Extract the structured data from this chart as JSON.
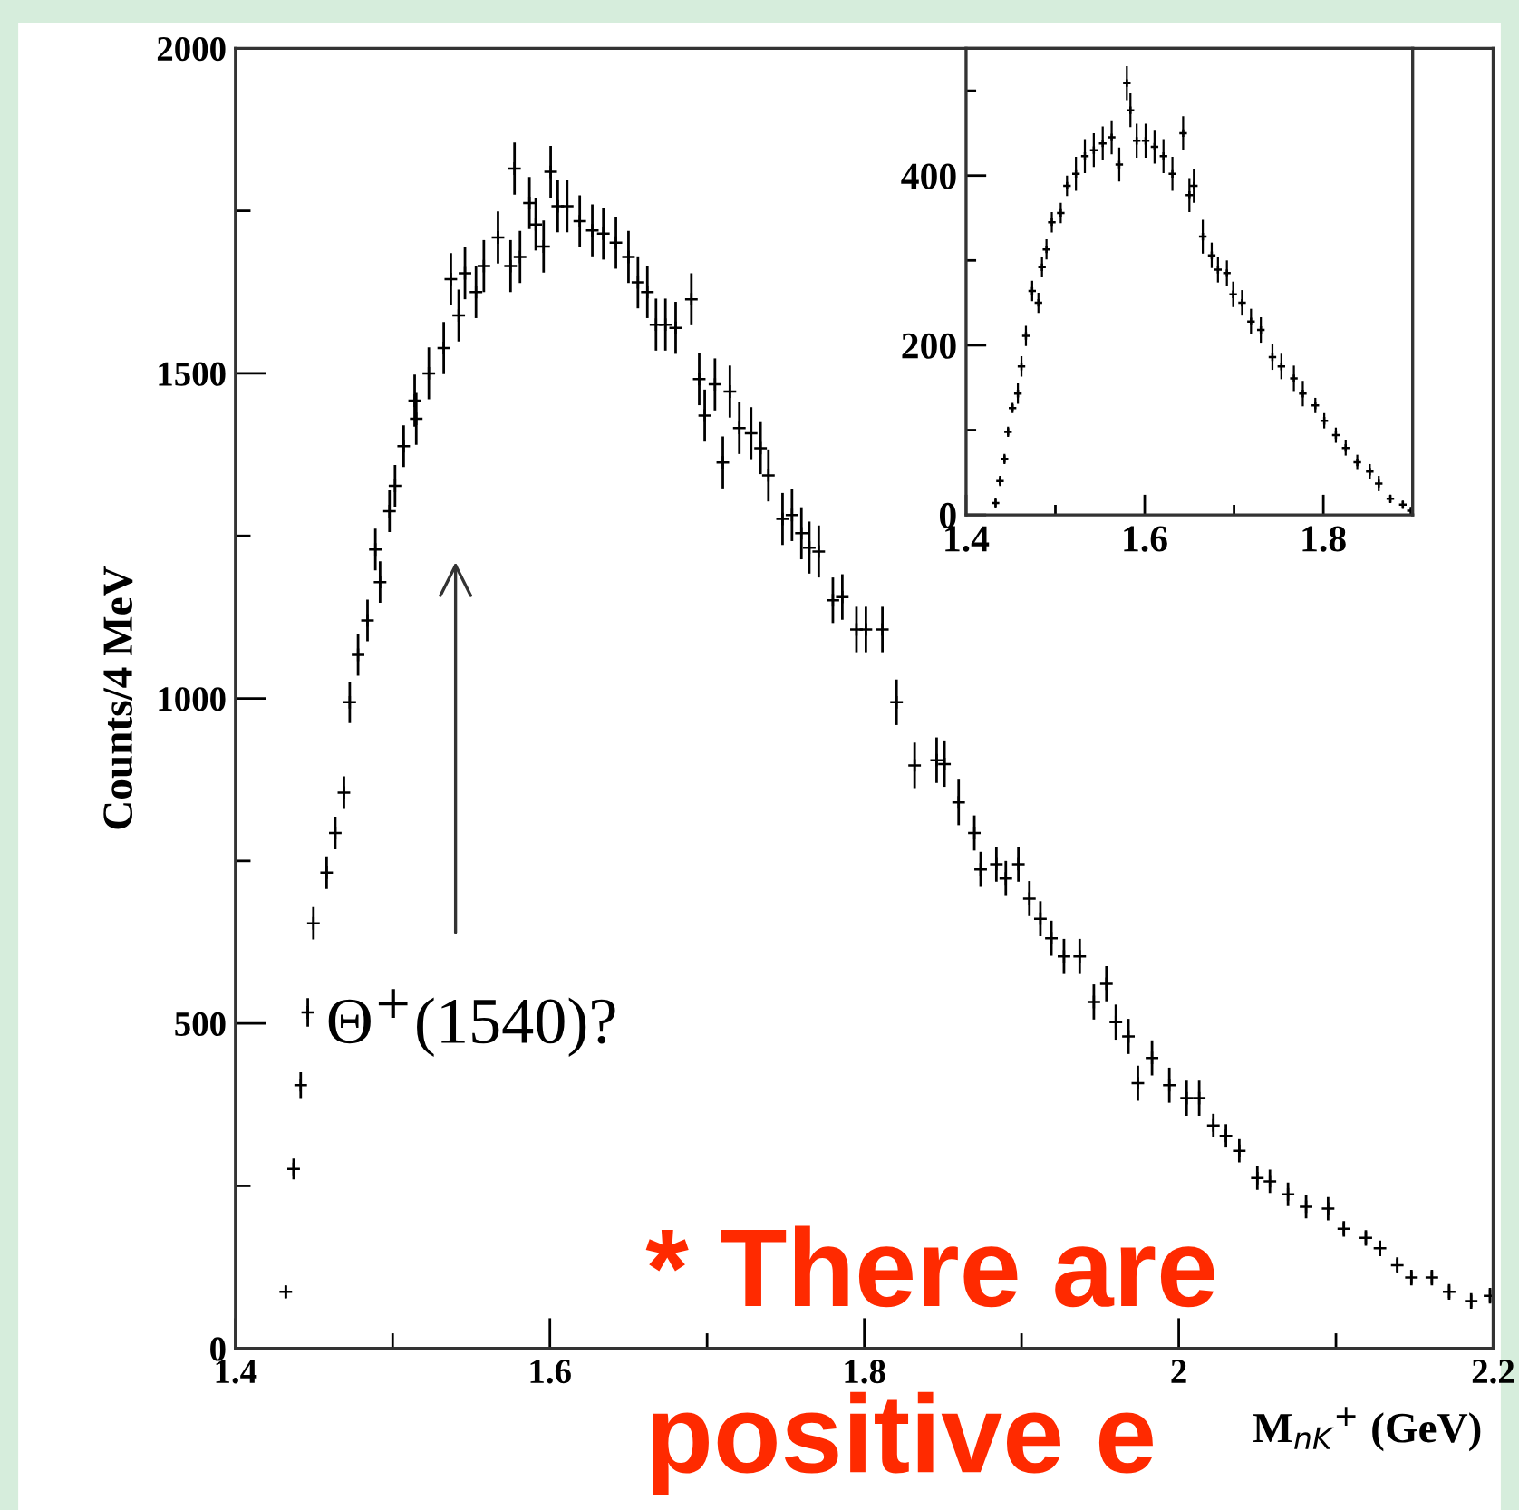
{
  "chart_data": [
    {
      "type": "scatter",
      "xlabel": "M$_{nK}$$^{+}$ (GeV)",
      "ylabel": "Counts/4 MeV",
      "x": [
        1.432,
        1.437,
        1.4415,
        1.446,
        1.4496,
        1.458,
        1.4635,
        1.469,
        1.4727,
        1.478,
        1.484,
        1.489,
        1.492,
        1.498,
        1.5015,
        1.507,
        1.514,
        1.515,
        1.523,
        1.5325,
        1.537,
        1.542,
        1.546,
        1.553,
        1.558,
        1.567,
        1.575,
        1.5775,
        1.581,
        1.587,
        1.591,
        1.596,
        1.6005,
        1.605,
        1.611,
        1.619,
        1.627,
        1.634,
        1.642,
        1.65,
        1.656,
        1.662,
        1.6675,
        1.6735,
        1.68,
        1.69,
        1.695,
        1.6985,
        1.705,
        1.71,
        1.7145,
        1.7205,
        1.728,
        1.734,
        1.739,
        1.748,
        1.754,
        1.76,
        1.765,
        1.771,
        1.78,
        1.786,
        1.795,
        1.801,
        1.8115,
        1.8205,
        1.832,
        1.846,
        1.851,
        1.86,
        1.87,
        1.874,
        1.884,
        1.89,
        1.898,
        1.905,
        1.912,
        1.919,
        1.927,
        1.937,
        1.946,
        1.954,
        1.96,
        1.968,
        1.974,
        1.983,
        1.994,
        2.005,
        2.013,
        2.022,
        2.03,
        2.0385,
        2.05,
        2.058,
        2.0695,
        2.081,
        2.095,
        2.105,
        2.119,
        2.128,
        2.139,
        2.148,
        2.161,
        2.172,
        2.186,
        2.198
      ],
      "series": [
        {
          "color": "#000000",
          "values": [
            87,
            276,
            405,
            517,
            654,
            732,
            793,
            855,
            994,
            1067,
            1120,
            1229,
            1179,
            1288,
            1327,
            1388,
            1458,
            1430,
            1500,
            1539,
            1645,
            1589,
            1654,
            1625,
            1665,
            1709,
            1665,
            1815,
            1679,
            1762,
            1729,
            1695,
            1810,
            1757,
            1757,
            1734,
            1720,
            1715,
            1701,
            1679,
            1640,
            1625,
            1575,
            1575,
            1570,
            1614,
            1491,
            1435,
            1483,
            1363,
            1472,
            1416,
            1408,
            1385,
            1343,
            1276,
            1282,
            1254,
            1232,
            1226,
            1151,
            1156,
            1106,
            1106,
            1106,
            994,
            897,
            905,
            899,
            840,
            793,
            737,
            745,
            723,
            745,
            692,
            661,
            631,
            603,
            603,
            533,
            561,
            502,
            480,
            408,
            447,
            405,
            385,
            385,
            343,
            327,
            304,
            262,
            257,
            237,
            218,
            215,
            184,
            170,
            154,
            128,
            109,
            109,
            87,
            73,
            81
          ],
          "errors": [
            10,
            16,
            20,
            22,
            25,
            25,
            25,
            25,
            32,
            32,
            32,
            32,
            32,
            32,
            32,
            32,
            40,
            40,
            40,
            40,
            40,
            40,
            40,
            40,
            40,
            40,
            40,
            40,
            40,
            40,
            40,
            40,
            40,
            40,
            40,
            40,
            40,
            40,
            40,
            40,
            40,
            40,
            40,
            40,
            40,
            40,
            40,
            40,
            40,
            40,
            40,
            40,
            40,
            40,
            40,
            40,
            40,
            40,
            40,
            40,
            35,
            35,
            35,
            35,
            35,
            35,
            35,
            35,
            35,
            35,
            27,
            27,
            27,
            27,
            27,
            27,
            27,
            27,
            27,
            27,
            27,
            27,
            27,
            27,
            27,
            27,
            27,
            27,
            27,
            18,
            18,
            18,
            18,
            18,
            18,
            18,
            18,
            12,
            12,
            12,
            12,
            12,
            12,
            12,
            12,
            12
          ]
        }
      ],
      "marker": "cross",
      "xlim": [
        1.4,
        2.2
      ],
      "xticks": [
        1.4,
        {
          "value": 1.5,
          "label": null
        },
        1.6,
        {
          "value": 1.7,
          "label": null
        },
        1.8,
        {
          "value": 1.9,
          "label": null
        },
        2,
        {
          "value": 2.1,
          "label": null
        },
        2.2
      ],
      "ylim": [
        0,
        2000
      ],
      "yticks": [
        0,
        {
          "value": 250,
          "label": null
        },
        500,
        {
          "value": 750,
          "label": null
        },
        1000,
        {
          "value": 1250,
          "label": null
        },
        1500,
        {
          "value": 1750,
          "label": null
        },
        2000
      ],
      "annotations": [
        "Θ$^{+}$(1540)?",
        "* There are",
        "positive e"
      ]
    },
    {
      "type": "scatter",
      "x": [
        1.433,
        1.438,
        1.443,
        1.447,
        1.452,
        1.458,
        1.462,
        1.467,
        1.474,
        1.481,
        1.485,
        1.49,
        1.496,
        1.506,
        1.513,
        1.523,
        1.533,
        1.543,
        1.553,
        1.563,
        1.5715,
        1.58,
        1.584,
        1.591,
        1.601,
        1.611,
        1.621,
        1.631,
        1.643,
        1.65,
        1.655,
        1.665,
        1.675,
        1.682,
        1.692,
        1.699,
        1.709,
        1.719,
        1.73,
        1.743,
        1.753,
        1.767,
        1.777,
        1.791,
        1.801,
        1.814,
        1.825,
        1.838,
        1.852,
        1.862,
        1.875,
        1.889,
        1.898
      ],
      "series": [
        {
          "color": "#000000",
          "values": [
            14,
            40,
            66,
            98,
            126,
            143,
            175,
            211,
            264,
            250,
            292,
            313,
            345,
            356,
            388,
            402,
            423,
            430,
            438,
            445,
            413,
            509,
            477,
            441,
            441,
            434,
            423,
            402,
            450,
            377,
            388,
            328,
            306,
            289,
            285,
            260,
            250,
            228,
            218,
            186,
            175,
            161,
            143,
            129,
            111,
            94,
            79,
            62,
            51,
            37,
            19,
            12,
            5
          ],
          "errors": [
            6,
            6,
            6,
            6,
            6,
            12,
            12,
            12,
            12,
            12,
            12,
            12,
            12,
            12,
            12,
            20,
            20,
            20,
            20,
            20,
            20,
            20,
            20,
            20,
            20,
            20,
            20,
            20,
            20,
            20,
            20,
            20,
            15,
            15,
            15,
            15,
            15,
            15,
            15,
            15,
            15,
            15,
            15,
            9,
            9,
            9,
            9,
            9,
            9,
            9,
            5,
            5,
            4
          ]
        }
      ],
      "marker": "cross",
      "xlim": [
        1.4,
        1.9
      ],
      "xticks": [
        1.4,
        {
          "value": 1.5,
          "label": null
        },
        1.6,
        {
          "value": 1.7,
          "label": null
        },
        1.8
      ],
      "ylim": [
        0,
        550
      ],
      "yticks": [
        0,
        {
          "value": 100,
          "label": null
        },
        200,
        {
          "value": 300,
          "label": null
        },
        400,
        {
          "value": 500,
          "label": null
        }
      ]
    }
  ]
}
